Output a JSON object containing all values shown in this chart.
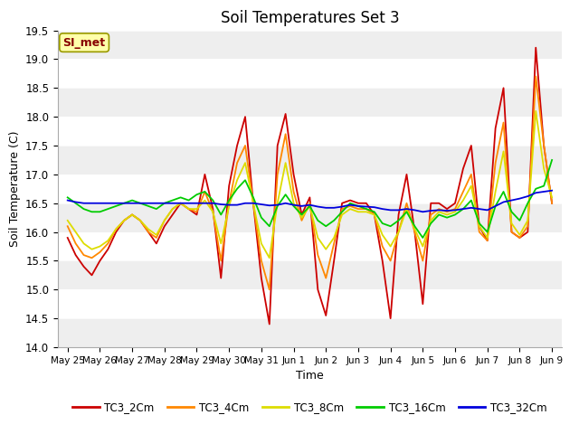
{
  "title": "Soil Temperatures Set 3",
  "xlabel": "Time",
  "ylabel": "Soil Temperature (C)",
  "ylim": [
    14.0,
    19.5
  ],
  "background_color": "#ffffff",
  "plot_bg_color": "#ffffff",
  "watermark": "SI_met",
  "series_names": [
    "TC3_2Cm",
    "TC3_4Cm",
    "TC3_8Cm",
    "TC3_16Cm",
    "TC3_32Cm"
  ],
  "series_colors": [
    "#cc0000",
    "#ff8800",
    "#dddd00",
    "#00cc00",
    "#0000dd"
  ],
  "x_labels": [
    "May 25",
    "May 26",
    "May 27",
    "May 28",
    "May 29",
    "May 30",
    "May 31",
    "Jun 1",
    "Jun 2",
    "Jun 3",
    "Jun 4",
    "Jun 5",
    "Jun 6",
    "Jun 7",
    "Jun 8",
    "Jun 9"
  ],
  "yticks": [
    14.0,
    14.5,
    15.0,
    15.5,
    16.0,
    16.5,
    17.0,
    17.5,
    18.0,
    18.5,
    19.0,
    19.5
  ],
  "TC3_2Cm_x": [
    0.0,
    0.25,
    0.5,
    0.75,
    1.0,
    1.25,
    1.5,
    1.75,
    2.0,
    2.25,
    2.5,
    2.75,
    3.0,
    3.25,
    3.5,
    3.75,
    4.0,
    4.25,
    4.5,
    4.75,
    5.0,
    5.25,
    5.5,
    5.75,
    6.0,
    6.25,
    6.5,
    6.75,
    7.0,
    7.25,
    7.5,
    7.75,
    8.0,
    8.25,
    8.5,
    8.75,
    9.0,
    9.25,
    9.5,
    9.75,
    10.0,
    10.25,
    10.5,
    10.75,
    11.0,
    11.25,
    11.5,
    11.75,
    12.0,
    12.25,
    12.5,
    12.75,
    13.0,
    13.25,
    13.5,
    13.75,
    14.0,
    14.25,
    14.5,
    14.75,
    15.0
  ],
  "TC3_2Cm_y": [
    15.9,
    15.6,
    15.4,
    15.25,
    15.5,
    15.7,
    16.0,
    16.2,
    16.3,
    16.2,
    16.0,
    15.8,
    16.1,
    16.3,
    16.5,
    16.4,
    16.3,
    17.0,
    16.4,
    15.2,
    16.8,
    17.5,
    18.0,
    16.5,
    15.2,
    14.4,
    17.5,
    18.05,
    17.0,
    16.3,
    16.6,
    15.0,
    14.55,
    15.5,
    16.5,
    16.55,
    16.5,
    16.5,
    16.3,
    15.5,
    14.5,
    16.3,
    17.0,
    16.0,
    14.75,
    16.5,
    16.5,
    16.4,
    16.5,
    17.1,
    17.5,
    16.1,
    15.85,
    17.8,
    18.5,
    16.0,
    15.9,
    16.0,
    19.2,
    17.5,
    16.5
  ],
  "TC3_4Cm_x": [
    0.0,
    0.25,
    0.5,
    0.75,
    1.0,
    1.25,
    1.5,
    1.75,
    2.0,
    2.25,
    2.5,
    2.75,
    3.0,
    3.25,
    3.5,
    3.75,
    4.0,
    4.25,
    4.5,
    4.75,
    5.0,
    5.25,
    5.5,
    5.75,
    6.0,
    6.25,
    6.5,
    6.75,
    7.0,
    7.25,
    7.5,
    7.75,
    8.0,
    8.25,
    8.5,
    8.75,
    9.0,
    9.25,
    9.5,
    9.75,
    10.0,
    10.25,
    10.5,
    10.75,
    11.0,
    11.25,
    11.5,
    11.75,
    12.0,
    12.25,
    12.5,
    12.75,
    13.0,
    13.25,
    13.5,
    13.75,
    14.0,
    14.25,
    14.5,
    14.75,
    15.0
  ],
  "TC3_4Cm_y": [
    16.1,
    15.8,
    15.6,
    15.55,
    15.65,
    15.8,
    16.05,
    16.2,
    16.3,
    16.2,
    16.0,
    15.9,
    16.2,
    16.4,
    16.5,
    16.4,
    16.35,
    16.7,
    16.35,
    15.5,
    16.5,
    17.2,
    17.5,
    16.5,
    15.5,
    15.0,
    17.0,
    17.7,
    16.7,
    16.2,
    16.5,
    15.6,
    15.2,
    15.8,
    16.4,
    16.45,
    16.4,
    16.4,
    16.3,
    15.75,
    15.5,
    16.0,
    16.5,
    16.0,
    15.5,
    16.3,
    16.4,
    16.35,
    16.4,
    16.7,
    17.0,
    16.0,
    15.85,
    17.2,
    17.9,
    16.0,
    15.9,
    16.1,
    18.7,
    17.5,
    16.5
  ],
  "TC3_8Cm_x": [
    0.0,
    0.25,
    0.5,
    0.75,
    1.0,
    1.25,
    1.5,
    1.75,
    2.0,
    2.25,
    2.5,
    2.75,
    3.0,
    3.25,
    3.5,
    3.75,
    4.0,
    4.25,
    4.5,
    4.75,
    5.0,
    5.25,
    5.5,
    5.75,
    6.0,
    6.25,
    6.5,
    6.75,
    7.0,
    7.25,
    7.5,
    7.75,
    8.0,
    8.25,
    8.5,
    8.75,
    9.0,
    9.25,
    9.5,
    9.75,
    10.0,
    10.25,
    10.5,
    10.75,
    11.0,
    11.25,
    11.5,
    11.75,
    12.0,
    12.25,
    12.5,
    12.75,
    13.0,
    13.25,
    13.5,
    13.75,
    14.0,
    14.25,
    14.5,
    14.75,
    15.0
  ],
  "TC3_8Cm_y": [
    16.2,
    16.0,
    15.8,
    15.7,
    15.75,
    15.85,
    16.05,
    16.2,
    16.3,
    16.2,
    16.05,
    15.95,
    16.2,
    16.4,
    16.5,
    16.4,
    16.4,
    16.55,
    16.35,
    15.8,
    16.45,
    16.9,
    17.2,
    16.5,
    15.8,
    15.55,
    16.5,
    17.2,
    16.5,
    16.25,
    16.45,
    15.9,
    15.7,
    15.9,
    16.3,
    16.4,
    16.35,
    16.35,
    16.3,
    15.95,
    15.75,
    16.0,
    16.4,
    16.05,
    15.75,
    16.2,
    16.35,
    16.3,
    16.35,
    16.55,
    16.8,
    16.1,
    15.9,
    16.7,
    17.4,
    16.15,
    15.95,
    16.2,
    18.1,
    17.1,
    16.6
  ],
  "TC3_16Cm_x": [
    0.0,
    0.25,
    0.5,
    0.75,
    1.0,
    1.25,
    1.5,
    1.75,
    2.0,
    2.25,
    2.5,
    2.75,
    3.0,
    3.25,
    3.5,
    3.75,
    4.0,
    4.25,
    4.5,
    4.75,
    5.0,
    5.25,
    5.5,
    5.75,
    6.0,
    6.25,
    6.5,
    6.75,
    7.0,
    7.25,
    7.5,
    7.75,
    8.0,
    8.25,
    8.5,
    8.75,
    9.0,
    9.25,
    9.5,
    9.75,
    10.0,
    10.25,
    10.5,
    10.75,
    11.0,
    11.25,
    11.5,
    11.75,
    12.0,
    12.25,
    12.5,
    12.75,
    13.0,
    13.25,
    13.5,
    13.75,
    14.0,
    14.25,
    14.5,
    14.75,
    15.0
  ],
  "TC3_16Cm_y": [
    16.6,
    16.5,
    16.4,
    16.35,
    16.35,
    16.4,
    16.45,
    16.5,
    16.55,
    16.5,
    16.45,
    16.4,
    16.5,
    16.55,
    16.6,
    16.55,
    16.65,
    16.7,
    16.55,
    16.3,
    16.55,
    16.75,
    16.9,
    16.6,
    16.25,
    16.1,
    16.45,
    16.65,
    16.45,
    16.3,
    16.45,
    16.2,
    16.1,
    16.2,
    16.35,
    16.5,
    16.45,
    16.4,
    16.35,
    16.15,
    16.1,
    16.2,
    16.35,
    16.1,
    15.9,
    16.15,
    16.3,
    16.25,
    16.3,
    16.4,
    16.55,
    16.15,
    16.0,
    16.45,
    16.7,
    16.35,
    16.2,
    16.5,
    16.75,
    16.8,
    17.25
  ],
  "TC3_32Cm_x": [
    0.0,
    0.25,
    0.5,
    0.75,
    1.0,
    1.25,
    1.5,
    1.75,
    2.0,
    2.25,
    2.5,
    2.75,
    3.0,
    3.25,
    3.5,
    3.75,
    4.0,
    4.25,
    4.5,
    4.75,
    5.0,
    5.25,
    5.5,
    5.75,
    6.0,
    6.25,
    6.5,
    6.75,
    7.0,
    7.25,
    7.5,
    7.75,
    8.0,
    8.25,
    8.5,
    8.75,
    9.0,
    9.25,
    9.5,
    9.75,
    10.0,
    10.25,
    10.5,
    10.75,
    11.0,
    11.25,
    11.5,
    11.75,
    12.0,
    12.25,
    12.5,
    12.75,
    13.0,
    13.25,
    13.5,
    13.75,
    14.0,
    14.25,
    14.5,
    14.75,
    15.0
  ],
  "TC3_32Cm_y": [
    16.55,
    16.52,
    16.5,
    16.5,
    16.5,
    16.5,
    16.5,
    16.5,
    16.5,
    16.5,
    16.5,
    16.5,
    16.5,
    16.5,
    16.5,
    16.5,
    16.5,
    16.5,
    16.5,
    16.48,
    16.47,
    16.47,
    16.5,
    16.5,
    16.48,
    16.46,
    16.47,
    16.5,
    16.47,
    16.45,
    16.47,
    16.44,
    16.42,
    16.42,
    16.44,
    16.47,
    16.45,
    16.44,
    16.43,
    16.4,
    16.38,
    16.38,
    16.4,
    16.38,
    16.35,
    16.37,
    16.38,
    16.37,
    16.38,
    16.4,
    16.42,
    16.4,
    16.38,
    16.45,
    16.52,
    16.55,
    16.58,
    16.62,
    16.68,
    16.7,
    16.72
  ]
}
